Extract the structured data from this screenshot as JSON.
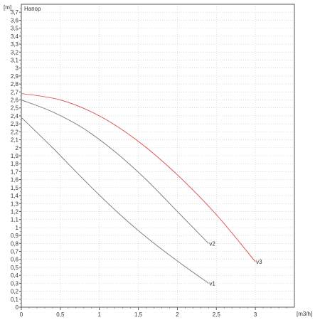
{
  "chart_data": {
    "type": "line",
    "title": "Напор",
    "ylabel": "[m]",
    "xlabel": "[m3/h]",
    "xlim": [
      0,
      3.5
    ],
    "ylim": [
      0,
      3.8
    ],
    "x_ticks": [
      "0",
      "0,5",
      "1",
      "1,5",
      "2",
      "2,5",
      "3"
    ],
    "y_ticks": [
      "0",
      "0,1",
      "0,2",
      "0,3",
      "0,4",
      "0,5",
      "0,6",
      "0,7",
      "0,8",
      "0,9",
      "1",
      "1,1",
      "1,2",
      "1,3",
      "1,4",
      "1,5",
      "1,6",
      "1,7",
      "1,8",
      "1,9",
      "2",
      "2,1",
      "2,2",
      "2,3",
      "2,4",
      "2,5",
      "2,6",
      "2,7",
      "2,8",
      "2,9",
      "3",
      "3,1",
      "3,2",
      "3,3",
      "3,4",
      "3,5",
      "3,6",
      "3,7"
    ],
    "x_tick_values": [
      0,
      0.5,
      1,
      1.5,
      2,
      2.5,
      3
    ],
    "y_tick_values": [
      0,
      0.1,
      0.2,
      0.3,
      0.4,
      0.5,
      0.6,
      0.7,
      0.8,
      0.9,
      1,
      1.1,
      1.2,
      1.3,
      1.4,
      1.5,
      1.6,
      1.7,
      1.8,
      1.9,
      2,
      2.1,
      2.2,
      2.3,
      2.4,
      2.5,
      2.6,
      2.7,
      2.8,
      2.9,
      3,
      3.1,
      3.2,
      3.3,
      3.4,
      3.5,
      3.6,
      3.7
    ],
    "grid": true,
    "series": [
      {
        "name": "v1",
        "color": "#808080",
        "x": [
          0,
          0.4,
          0.8,
          1.2,
          1.6,
          2.0,
          2.4
        ],
        "y": [
          2.38,
          2.0,
          1.6,
          1.22,
          0.88,
          0.58,
          0.3
        ]
      },
      {
        "name": "v2",
        "color": "#808080",
        "x": [
          0,
          0.4,
          0.8,
          1.2,
          1.6,
          2.0,
          2.4
        ],
        "y": [
          2.6,
          2.45,
          2.24,
          1.95,
          1.6,
          1.2,
          0.8
        ]
      },
      {
        "name": "v3",
        "color": "#e05a5a",
        "x": [
          0,
          0.5,
          1.0,
          1.5,
          2.0,
          2.5,
          3.0
        ],
        "y": [
          2.68,
          2.6,
          2.4,
          2.08,
          1.66,
          1.16,
          0.57
        ]
      }
    ]
  }
}
